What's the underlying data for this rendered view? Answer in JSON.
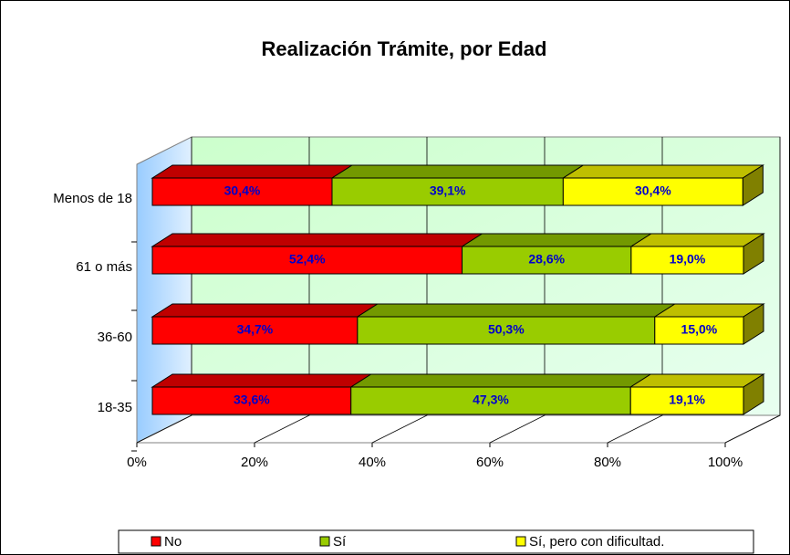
{
  "chart_data": {
    "type": "stacked-bar-3d-horizontal",
    "title": "Realización Trámite, por Edad",
    "categories": [
      "Menos de 18",
      "61 o más",
      "36-60",
      "18-35"
    ],
    "series": [
      {
        "name": "No",
        "color": "#ff0000",
        "values": [
          30.4,
          52.4,
          34.7,
          33.6
        ],
        "value_labels": [
          "30,4%",
          "52,4%",
          "34,7%",
          "33,6%"
        ]
      },
      {
        "name": "Sí",
        "color": "#99cc00",
        "values": [
          39.1,
          28.6,
          50.3,
          47.3
        ],
        "value_labels": [
          "39,1%",
          "28,6%",
          "50,3%",
          "47,3%"
        ]
      },
      {
        "name": "Sí, pero con dificultad.",
        "color": "#ffff00",
        "values": [
          30.4,
          19.0,
          15.0,
          19.1
        ],
        "value_labels": [
          "30,4%",
          "19,0%",
          "15,0%",
          "19,1%"
        ]
      }
    ],
    "xlim": [
      0,
      100
    ],
    "xticks": [
      {
        "value": 0,
        "label": "0%"
      },
      {
        "value": 20,
        "label": "20%"
      },
      {
        "value": 40,
        "label": "40%"
      },
      {
        "value": 60,
        "label": "60%"
      },
      {
        "value": 80,
        "label": "80%"
      },
      {
        "value": 100,
        "label": "100%"
      }
    ],
    "grid": true,
    "legend": "bottom"
  }
}
